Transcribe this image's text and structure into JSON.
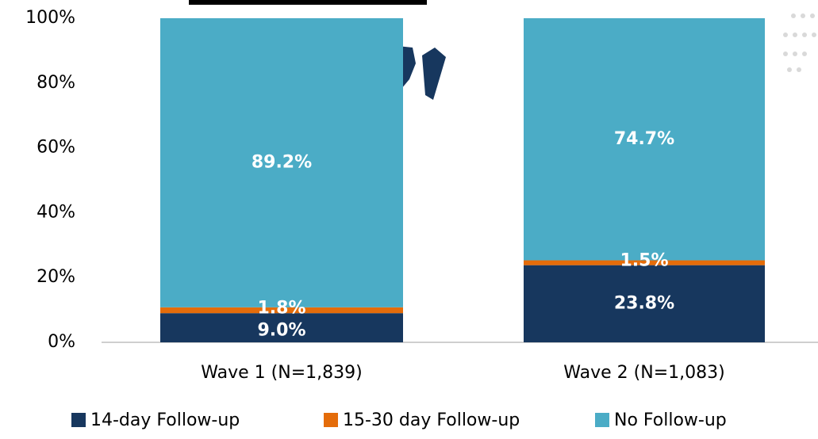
{
  "chart_data": {
    "type": "stacked_bar",
    "categories": [
      "Wave 1 (N=1,839)",
      "Wave 2 (N=1,083)"
    ],
    "series": [
      {
        "name": "14-day Follow-up",
        "color": "#17375e",
        "values": [
          9.0,
          23.8
        ],
        "value_labels": [
          "9.0%",
          "23.8%"
        ]
      },
      {
        "name": "15-30 day Follow-up",
        "color": "#e46c0a",
        "values": [
          1.8,
          1.5
        ],
        "value_labels": [
          "1.8%",
          "1.5%"
        ]
      },
      {
        "name": "No Follow-up",
        "color": "#4bacc6",
        "values": [
          89.2,
          74.7
        ],
        "value_labels": [
          "89.2%",
          "74.7%"
        ]
      }
    ],
    "ylim": [
      0,
      100
    ],
    "yticks": [
      {
        "value": 0,
        "label": "0%"
      },
      {
        "value": 20,
        "label": "20%"
      },
      {
        "value": 40,
        "label": "40%"
      },
      {
        "value": 60,
        "label": "60%"
      },
      {
        "value": 80,
        "label": "80%"
      },
      {
        "value": 100,
        "label": "100%"
      }
    ],
    "legend": "bottom"
  }
}
